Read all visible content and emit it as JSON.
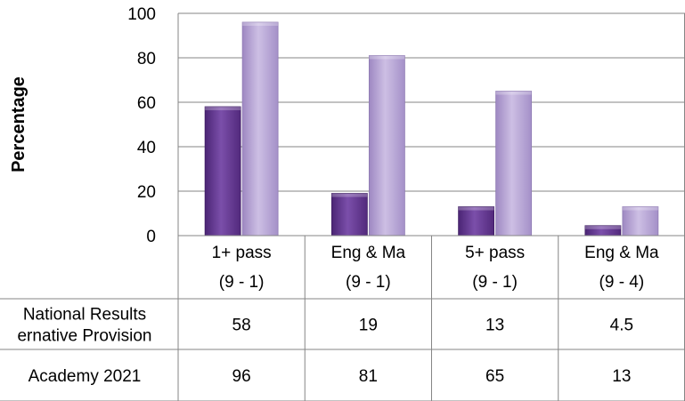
{
  "chart_data": {
    "type": "bar",
    "title": "",
    "xlabel": "",
    "ylabel": "Percentage",
    "ylim": [
      0,
      100
    ],
    "yticks": [
      0,
      20,
      40,
      60,
      80,
      100
    ],
    "grid": true,
    "categories": [
      [
        "1+ pass",
        "(9 - 1)"
      ],
      [
        "Eng & Ma",
        "(9 - 1)"
      ],
      [
        "5+ pass",
        "(9 - 1)"
      ],
      [
        "Eng & Ma",
        "(9 - 4)"
      ]
    ],
    "series": [
      {
        "name_lines": [
          "National Results",
          "ernative Provision"
        ],
        "values": [
          58,
          19,
          13,
          4.5
        ],
        "labels": [
          "58",
          "19",
          "13",
          "4.5"
        ],
        "color": "#6b3f98"
      },
      {
        "name_lines": [
          "Academy 2021"
        ],
        "values": [
          96,
          81,
          65,
          13
        ],
        "labels": [
          "96",
          "81",
          "65",
          "13"
        ],
        "color": "#b7a4d4"
      }
    ],
    "legend": "data-table"
  }
}
